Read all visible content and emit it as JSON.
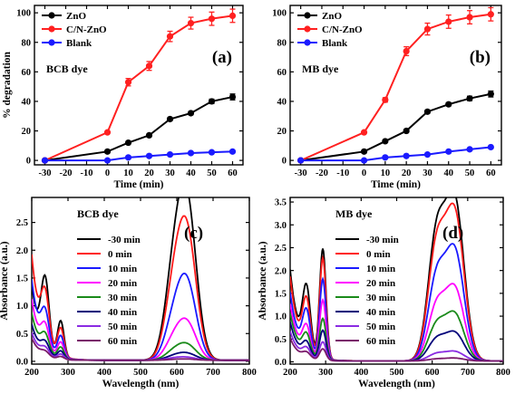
{
  "chart_data": [
    {
      "panel": "a",
      "type": "line",
      "panel_label": "(a)",
      "annotation": "BCB dye",
      "xlabel": "Time (min)",
      "ylabel": "% degradation",
      "xlim": [
        -35,
        65
      ],
      "ylim": [
        -3,
        105
      ],
      "xticks": [
        -30,
        -20,
        -10,
        0,
        10,
        20,
        30,
        40,
        50,
        60
      ],
      "yticks": [
        0,
        20,
        40,
        60,
        80,
        100
      ],
      "x": [
        -30,
        0,
        10,
        20,
        30,
        40,
        50,
        60
      ],
      "legend_position": "top-left",
      "series": [
        {
          "name": "ZnO",
          "color": "#000000",
          "values": [
            0,
            6,
            12,
            17,
            28,
            32,
            40,
            43
          ],
          "errors": [
            0,
            0.5,
            0.5,
            1,
            1,
            1,
            1.5,
            2
          ]
        },
        {
          "name": "C/N-ZnO",
          "color": "#ff2020",
          "values": [
            0,
            19,
            53,
            64,
            84,
            93,
            96,
            98
          ],
          "errors": [
            0,
            0.5,
            2.5,
            3,
            3.5,
            4,
            4.5,
            4.5
          ]
        },
        {
          "name": "Blank",
          "color": "#1a1aff",
          "values": [
            0,
            0,
            2,
            3,
            4,
            5,
            5.5,
            6
          ],
          "errors": [
            0,
            0,
            0,
            0,
            0,
            0,
            0,
            0.5
          ]
        }
      ]
    },
    {
      "panel": "b",
      "type": "line",
      "panel_label": "(b)",
      "annotation": "MB dye",
      "xlabel": "Time (min)",
      "ylabel": "",
      "xlim": [
        -35,
        65
      ],
      "ylim": [
        -3,
        105
      ],
      "xticks": [
        -30,
        -20,
        -10,
        0,
        10,
        20,
        30,
        40,
        50,
        60
      ],
      "yticks": [
        0,
        20,
        40,
        60,
        80,
        100
      ],
      "x": [
        -30,
        0,
        10,
        20,
        30,
        40,
        50,
        60
      ],
      "legend_position": "top-left",
      "series": [
        {
          "name": "ZnO",
          "color": "#000000",
          "values": [
            0,
            6,
            13,
            20,
            33,
            38,
            42,
            45
          ],
          "errors": [
            0,
            0.5,
            0.5,
            1,
            1,
            1,
            1.5,
            2
          ]
        },
        {
          "name": "C/N-ZnO",
          "color": "#ff2020",
          "values": [
            0,
            19,
            41,
            74,
            89,
            94,
            97,
            99
          ],
          "errors": [
            0,
            0.5,
            1.5,
            3,
            4,
            4.5,
            4.5,
            4.5
          ]
        },
        {
          "name": "Blank",
          "color": "#1a1aff",
          "values": [
            0,
            0,
            2,
            3,
            4,
            6,
            7.5,
            9
          ],
          "errors": [
            0,
            0,
            0,
            0,
            0,
            0,
            0,
            0
          ]
        }
      ]
    },
    {
      "panel": "c",
      "type": "line",
      "panel_label": "(c)",
      "annotation": "BCB dye",
      "xlabel": "Wavelength (nm)",
      "ylabel": "Absorbance (a.u.)",
      "xlim": [
        200,
        800
      ],
      "ylim": [
        -0.05,
        2.95
      ],
      "xticks": [
        200,
        300,
        400,
        500,
        600,
        700,
        800
      ],
      "yticks": [
        0.0,
        0.5,
        1.0,
        1.5,
        2.0,
        2.5
      ],
      "ytick_labels": [
        "0.0",
        "0.5",
        "1.0",
        "1.5",
        "2.0",
        "2.5"
      ],
      "legend_position": "top-left-center",
      "spectrum_model": {
        "uv_peaks": [
          237,
          280
        ],
        "vis_peaks": [
          590,
          628
        ]
      },
      "series": [
        {
          "name": "-30 min",
          "color": "#000000",
          "uv_base": 1.35,
          "uv1": 1.2,
          "uv2": 0.65,
          "vis1": 1.3,
          "vis2": 2.75
        },
        {
          "name": "0 min",
          "color": "#ff1a1a",
          "uv_base": 1.9,
          "uv1": 0.85,
          "uv2": 0.5,
          "vis1": 1.05,
          "vis2": 2.22
        },
        {
          "name": "10 min",
          "color": "#1a1aff",
          "uv_base": 1.45,
          "uv1": 0.6,
          "uv2": 0.38,
          "vis1": 0.6,
          "vis2": 1.35
        },
        {
          "name": "20 min",
          "color": "#ff00ff",
          "uv_base": 1.1,
          "uv1": 0.42,
          "uv2": 0.28,
          "vis1": 0.3,
          "vis2": 0.65
        },
        {
          "name": "30 min",
          "color": "#1a8a1a",
          "uv_base": 0.85,
          "uv1": 0.3,
          "uv2": 0.2,
          "vis1": 0.13,
          "vis2": 0.27
        },
        {
          "name": "40 min",
          "color": "#00007a",
          "uv_base": 0.65,
          "uv1": 0.2,
          "uv2": 0.14,
          "vis1": 0.06,
          "vis2": 0.12
        },
        {
          "name": "50 min",
          "color": "#8a2be2",
          "uv_base": 0.5,
          "uv1": 0.13,
          "uv2": 0.09,
          "vis1": 0.03,
          "vis2": 0.05
        },
        {
          "name": "60 min",
          "color": "#7a1a6a",
          "uv_base": 0.4,
          "uv1": 0.08,
          "uv2": 0.05,
          "vis1": 0.01,
          "vis2": 0.02
        }
      ]
    },
    {
      "panel": "d",
      "type": "line",
      "panel_label": "(d)",
      "annotation": "MB dye",
      "xlabel": "Wavelength (nm)",
      "ylabel": "Absorbance (a.u.)",
      "xlim": [
        200,
        800
      ],
      "ylim": [
        -0.05,
        3.6
      ],
      "xticks": [
        200,
        300,
        400,
        500,
        600,
        700,
        800
      ],
      "yticks": [
        0.0,
        0.5,
        1.0,
        1.5,
        2.0,
        2.5,
        3.0,
        3.5
      ],
      "ytick_labels": [
        "0.0",
        "0.5",
        "1.0",
        "1.5",
        "2.0",
        "2.5",
        "3.0",
        "3.5"
      ],
      "legend_position": "top-left-center",
      "spectrum_model": {
        "uv_peaks": [
          246,
          292
        ],
        "vis_peaks": [
          612,
          664
        ]
      },
      "series": [
        {
          "name": "-30 min",
          "color": "#000000",
          "uv_base": 2.0,
          "uv1": 1.35,
          "uv2": 2.4,
          "vis1": 2.65,
          "vis2": 3.42
        },
        {
          "name": "0 min",
          "color": "#ff1a1a",
          "uv_base": 1.85,
          "uv1": 1.1,
          "uv2": 2.2,
          "vis1": 2.4,
          "vis2": 3.15
        },
        {
          "name": "10 min",
          "color": "#1a1aff",
          "uv_base": 1.5,
          "uv1": 0.9,
          "uv2": 1.75,
          "vis1": 1.75,
          "vis2": 2.35
        },
        {
          "name": "20 min",
          "color": "#ff00ff",
          "uv_base": 1.25,
          "uv1": 0.6,
          "uv2": 1.3,
          "vis1": 1.15,
          "vis2": 1.55
        },
        {
          "name": "30 min",
          "color": "#1a8a1a",
          "uv_base": 1.05,
          "uv1": 0.45,
          "uv2": 0.9,
          "vis1": 0.75,
          "vis2": 1.0
        },
        {
          "name": "40 min",
          "color": "#00007a",
          "uv_base": 0.85,
          "uv1": 0.3,
          "uv2": 0.65,
          "vis1": 0.45,
          "vis2": 0.6
        },
        {
          "name": "50 min",
          "color": "#8a2be2",
          "uv_base": 0.65,
          "uv1": 0.2,
          "uv2": 0.4,
          "vis1": 0.15,
          "vis2": 0.2
        },
        {
          "name": "60 min",
          "color": "#7a1a6a",
          "uv_base": 0.5,
          "uv1": 0.12,
          "uv2": 0.25,
          "vis1": 0.04,
          "vis2": 0.06
        }
      ]
    }
  ]
}
